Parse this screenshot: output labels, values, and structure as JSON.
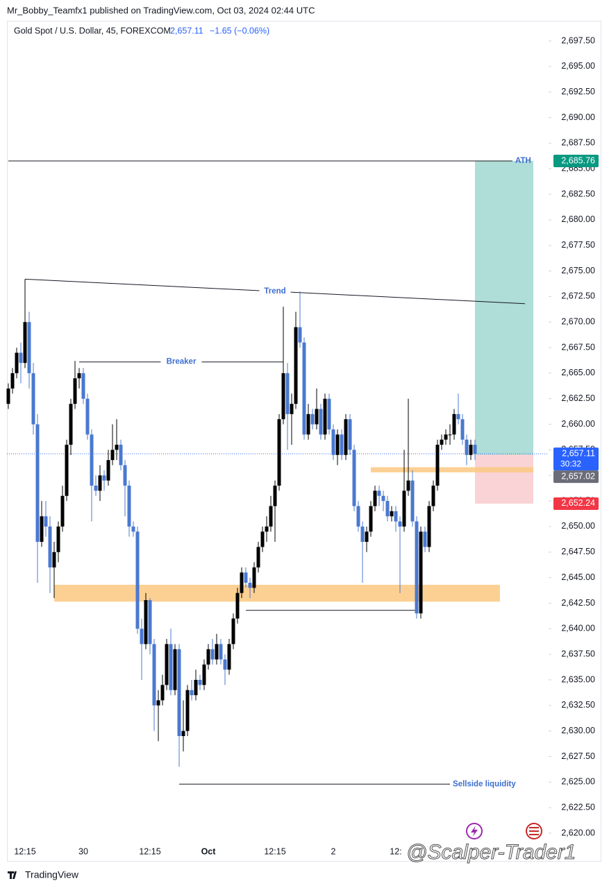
{
  "header": {
    "byline": "Mr_Bobby_Teamfx1 published on TradingView.com, Oct 03, 2024 02:44 UTC"
  },
  "chart_data": {
    "type": "candlestick",
    "symbol": "Gold Spot / U.S. Dollar, 45, FOREXCOM",
    "change": "−1.65 (−0.06%)",
    "last": {
      "value": 2657.11,
      "label": "2,657.11",
      "countdown": "30:32",
      "color": "#2962ff"
    },
    "up_color": "#000000",
    "down_color": "#4a78d0",
    "ylim": [
      2619.05,
      2699.47
    ],
    "yticks": [
      {
        "value": 2620,
        "label": "2,620.00"
      },
      {
        "value": 2622.5,
        "label": "2,622.50"
      },
      {
        "value": 2625,
        "label": "2,625.00"
      },
      {
        "value": 2627.5,
        "label": "2,627.50"
      },
      {
        "value": 2630,
        "label": "2,630.00"
      },
      {
        "value": 2632.5,
        "label": "2,632.50"
      },
      {
        "value": 2635,
        "label": "2,635.00"
      },
      {
        "value": 2637.5,
        "label": "2,637.50"
      },
      {
        "value": 2640,
        "label": "2,640.00"
      },
      {
        "value": 2642.5,
        "label": "2,642.50"
      },
      {
        "value": 2645,
        "label": "2,645.00"
      },
      {
        "value": 2647.5,
        "label": "2,647.50"
      },
      {
        "value": 2650,
        "label": "2,650.00"
      },
      {
        "value": 2652.5,
        "label": "2,652.50"
      },
      {
        "value": 2655,
        "label": "2,655.00"
      },
      {
        "value": 2657.5,
        "label": "2,657.50"
      },
      {
        "value": 2660,
        "label": "2,660.00"
      },
      {
        "value": 2662.5,
        "label": "2,662.50"
      },
      {
        "value": 2665,
        "label": "2,665.00"
      },
      {
        "value": 2667.5,
        "label": "2,667.50"
      },
      {
        "value": 2670,
        "label": "2,670.00"
      },
      {
        "value": 2672.5,
        "label": "2,672.50"
      },
      {
        "value": 2675,
        "label": "2,675.00"
      },
      {
        "value": 2677.5,
        "label": "2,677.50"
      },
      {
        "value": 2680,
        "label": "2,680.00"
      },
      {
        "value": 2682.5,
        "label": "2,682.50"
      },
      {
        "value": 2685,
        "label": "2,685.00"
      },
      {
        "value": 2687.5,
        "label": "2,687.50"
      },
      {
        "value": 2690,
        "label": "2,690.00"
      },
      {
        "value": 2692.5,
        "label": "2,692.50"
      },
      {
        "value": 2695,
        "label": "2,695.00"
      },
      {
        "value": 2697.5,
        "label": "2,697.50"
      }
    ],
    "categories": [
      null,
      null,
      null,
      null,
      "12:15",
      null,
      null,
      null,
      null,
      null,
      null,
      null,
      null,
      null,
      null,
      null,
      null,
      null,
      "30",
      null,
      null,
      null,
      null,
      null,
      null,
      null,
      null,
      null,
      null,
      null,
      null,
      null,
      null,
      null,
      "12:15",
      null,
      null,
      null,
      null,
      null,
      null,
      null,
      null,
      null,
      null,
      null,
      null,
      null,
      "Oct",
      null,
      null,
      null,
      null,
      null,
      null,
      null,
      null,
      null,
      null,
      null,
      null,
      null,
      null,
      null,
      "12:15",
      null,
      null,
      null,
      null,
      null,
      null,
      null,
      null,
      null,
      null,
      null,
      null,
      null,
      "2",
      null,
      null,
      null,
      null,
      null,
      null,
      null,
      null,
      null,
      null,
      null,
      null,
      null,
      null,
      "12:",
      null,
      null,
      null,
      null,
      null,
      null,
      null,
      null,
      null,
      null,
      null,
      null,
      null,
      null,
      null,
      null,
      null,
      null,
      null
    ],
    "candles": [
      [
        2662,
        2664,
        2661.5,
        2663.5
      ],
      [
        2663.5,
        2665.5,
        2663,
        2665
      ],
      [
        2665,
        2667.5,
        2664.5,
        2667
      ],
      [
        2667,
        2668,
        2664,
        2666
      ],
      [
        2666,
        2674.2,
        2665.5,
        2670
      ],
      [
        2670,
        2671,
        2663.5,
        2665
      ],
      [
        2665,
        2666,
        2659,
        2660
      ],
      [
        2660,
        2661,
        2644.5,
        2648.5
      ],
      [
        2648.5,
        2652.5,
        2648,
        2651
      ],
      [
        2651,
        2652.5,
        2649,
        2650
      ],
      [
        2650,
        2651,
        2643.5,
        2646
      ],
      [
        2646,
        2648.5,
        2643,
        2647.5
      ],
      [
        2647.5,
        2650.5,
        2646.5,
        2650
      ],
      [
        2650,
        2654,
        2649.5,
        2653
      ],
      [
        2653,
        2658.5,
        2652.5,
        2658
      ],
      [
        2658,
        2662.5,
        2657,
        2662
      ],
      [
        2662,
        2666.2,
        2661.5,
        2664.5
      ],
      [
        2664.5,
        2665.5,
        2663.5,
        2665
      ],
      [
        2665,
        2665.5,
        2662,
        2662.5
      ],
      [
        2662.5,
        2663,
        2658.5,
        2659
      ],
      [
        2659,
        2659.5,
        2650.5,
        2654
      ],
      [
        2654,
        2655,
        2653,
        2653.5
      ],
      [
        2653.5,
        2656,
        2652.5,
        2655
      ],
      [
        2655,
        2655.5,
        2653.5,
        2654.5
      ],
      [
        2654.5,
        2657.5,
        2654,
        2656.5
      ],
      [
        2656.5,
        2660,
        2656,
        2657.5
      ],
      [
        2657.5,
        2660.5,
        2656.5,
        2658
      ],
      [
        2658,
        2658.5,
        2655.5,
        2656
      ],
      [
        2656,
        2656.5,
        2651,
        2654
      ],
      [
        2654,
        2654.5,
        2649,
        2650
      ],
      [
        2650,
        2650.5,
        2649,
        2649.5
      ],
      [
        2649.5,
        2650,
        2639.5,
        2640
      ],
      [
        2640,
        2641,
        2635,
        2638.5
      ],
      [
        2638.5,
        2643.5,
        2638,
        2642.8
      ],
      [
        2642.8,
        2643,
        2637.5,
        2638.5
      ],
      [
        2638.5,
        2639,
        2630,
        2632.5
      ],
      [
        2632.5,
        2634,
        2629,
        2633
      ],
      [
        2633,
        2635.5,
        2632.5,
        2634.5
      ],
      [
        2634.5,
        2639,
        2634,
        2638.5
      ],
      [
        2638.5,
        2640,
        2633.5,
        2634
      ],
      [
        2634,
        2638.5,
        2633.5,
        2638
      ],
      [
        2638,
        2638.5,
        2626.5,
        2629.5
      ],
      [
        2629.5,
        2633,
        2628,
        2630
      ],
      [
        2630,
        2634.5,
        2629.5,
        2634
      ],
      [
        2634,
        2635,
        2633,
        2633.5
      ],
      [
        2633.5,
        2636,
        2633,
        2635
      ],
      [
        2635,
        2635.5,
        2634,
        2634.5
      ],
      [
        2634.5,
        2637,
        2634,
        2636.5
      ],
      [
        2636.5,
        2638.5,
        2636,
        2638
      ],
      [
        2638,
        2639,
        2636.5,
        2637
      ],
      [
        2637,
        2639.5,
        2636.5,
        2638.5
      ],
      [
        2638.5,
        2639,
        2636.5,
        2637
      ],
      [
        2637,
        2637.5,
        2634.5,
        2636
      ],
      [
        2636,
        2639,
        2635.5,
        2638.5
      ],
      [
        2638.5,
        2641.5,
        2638,
        2641
      ],
      [
        2641,
        2644,
        2640.5,
        2643.5
      ],
      [
        2643.5,
        2646,
        2643,
        2645.5
      ],
      [
        2645.5,
        2646,
        2644,
        2644.5
      ],
      [
        2644.5,
        2645,
        2643,
        2644
      ],
      [
        2644,
        2646.5,
        2643.5,
        2646
      ],
      [
        2646,
        2648.5,
        2645.5,
        2648
      ],
      [
        2648,
        2650,
        2647.5,
        2649.5
      ],
      [
        2649.5,
        2651,
        2648.5,
        2650
      ],
      [
        2650,
        2653,
        2649.5,
        2652
      ],
      [
        2652,
        2654.5,
        2648.5,
        2654
      ],
      [
        2654,
        2661,
        2653.5,
        2660.5
      ],
      [
        2660.5,
        2671.5,
        2660,
        2665
      ],
      [
        2665,
        2666,
        2657.5,
        2661
      ],
      [
        2661,
        2663,
        2658,
        2662
      ],
      [
        2662,
        2671,
        2661.5,
        2669.5
      ],
      [
        2669.5,
        2673,
        2667.5,
        2668
      ],
      [
        2668,
        2668.5,
        2658.5,
        2659
      ],
      [
        2659,
        2662,
        2658.5,
        2661
      ],
      [
        2661,
        2661.5,
        2659.5,
        2660
      ],
      [
        2660,
        2663.5,
        2659.5,
        2661.5
      ],
      [
        2661.5,
        2662,
        2658.5,
        2659
      ],
      [
        2659,
        2663,
        2658.5,
        2662.5
      ],
      [
        2662.5,
        2663,
        2659,
        2659.5
      ],
      [
        2659.5,
        2660,
        2656.5,
        2657
      ],
      [
        2657,
        2659.5,
        2656,
        2659
      ],
      [
        2659,
        2659.5,
        2656.5,
        2657
      ],
      [
        2657,
        2661,
        2656.5,
        2660.5
      ],
      [
        2660.5,
        2661,
        2657,
        2657.5
      ],
      [
        2657.5,
        2658,
        2651.5,
        2652
      ],
      [
        2652,
        2652.5,
        2649.5,
        2650
      ],
      [
        2650,
        2650.5,
        2644.5,
        2648.5
      ],
      [
        2648.5,
        2650,
        2647.5,
        2649.5
      ],
      [
        2649.5,
        2652.5,
        2649,
        2652
      ],
      [
        2652,
        2654,
        2651.5,
        2653.5
      ],
      [
        2653.5,
        2654,
        2652,
        2653
      ],
      [
        2653,
        2653.5,
        2651.5,
        2652.5
      ],
      [
        2652.5,
        2653,
        2650.5,
        2651
      ],
      [
        2651,
        2652,
        2650.5,
        2651.5
      ],
      [
        2651.5,
        2652,
        2649.5,
        2650.5
      ],
      [
        2650.5,
        2651,
        2643.5,
        2650
      ],
      [
        2650,
        2657.5,
        2649.5,
        2653.5
      ],
      [
        2653.5,
        2662.5,
        2653,
        2654.5
      ],
      [
        2654.5,
        2655.5,
        2650,
        2650.5
      ],
      [
        2650.5,
        2651,
        2641,
        2641.5
      ],
      [
        2641.5,
        2650,
        2641,
        2649.5
      ],
      [
        2649.5,
        2650,
        2647.5,
        2648
      ],
      [
        2648,
        2652.5,
        2647.5,
        2652
      ],
      [
        2652,
        2654.5,
        2651.5,
        2654
      ],
      [
        2654,
        2658.5,
        2653.5,
        2658
      ],
      [
        2658,
        2659,
        2657.5,
        2658.5
      ],
      [
        2658.5,
        2659.5,
        2658,
        2659
      ],
      [
        2659,
        2660,
        2658,
        2659
      ],
      [
        2659,
        2661.5,
        2658.5,
        2661
      ],
      [
        2661,
        2663,
        2660,
        2660.5
      ],
      [
        2660.5,
        2661,
        2658,
        2658.5
      ],
      [
        2658.5,
        2659,
        2656,
        2657
      ],
      [
        2657,
        2658.5,
        2656.5,
        2658
      ],
      [
        2658,
        2658.5,
        2656.5,
        2657.11
      ]
    ],
    "zones": [
      {
        "from": 11,
        "to": 118,
        "y": [
          2642.65,
          2644.3
        ],
        "color": "#fcc880"
      },
      {
        "from": 87,
        "to": 126,
        "y": [
          2655.3,
          2655.8
        ],
        "color": "#fcc880"
      }
    ],
    "position": {
      "from": 112,
      "to": 126,
      "target": {
        "value": 2685.76,
        "label": "2,685.76",
        "color": "#089981",
        "fill": "#afddd7"
      },
      "entry": {
        "value": 2657.02,
        "label": "2,657.02",
        "color": "#6a6d78"
      },
      "stop": {
        "value": 2652.24,
        "label": "2,652.24",
        "color": "#f23645",
        "fill": "#f9d3d5"
      }
    },
    "lines": [
      {
        "text": "ATH",
        "label_position": "right",
        "from": 0,
        "to": 121,
        "y": [
          2685.76,
          2685.76
        ]
      },
      {
        "text": "Trend",
        "label_position": "middle",
        "from": 4,
        "to": 124,
        "y": [
          2674.2,
          2671.8
        ]
      },
      {
        "text": "Breaker",
        "label_position": "middle",
        "from": 17,
        "to": 66,
        "y": [
          2666.1,
          2666.1
        ]
      },
      {
        "from": 57,
        "to": 98,
        "y": [
          2641.8,
          2641.8
        ]
      },
      {
        "text": "Sellside liquidity",
        "label_position": "right",
        "from": 41,
        "to": 106,
        "y": [
          2624.8,
          2624.8
        ]
      }
    ]
  },
  "watermark": "@Scalper-Trader1",
  "footer": {
    "brand": "TradingView"
  }
}
